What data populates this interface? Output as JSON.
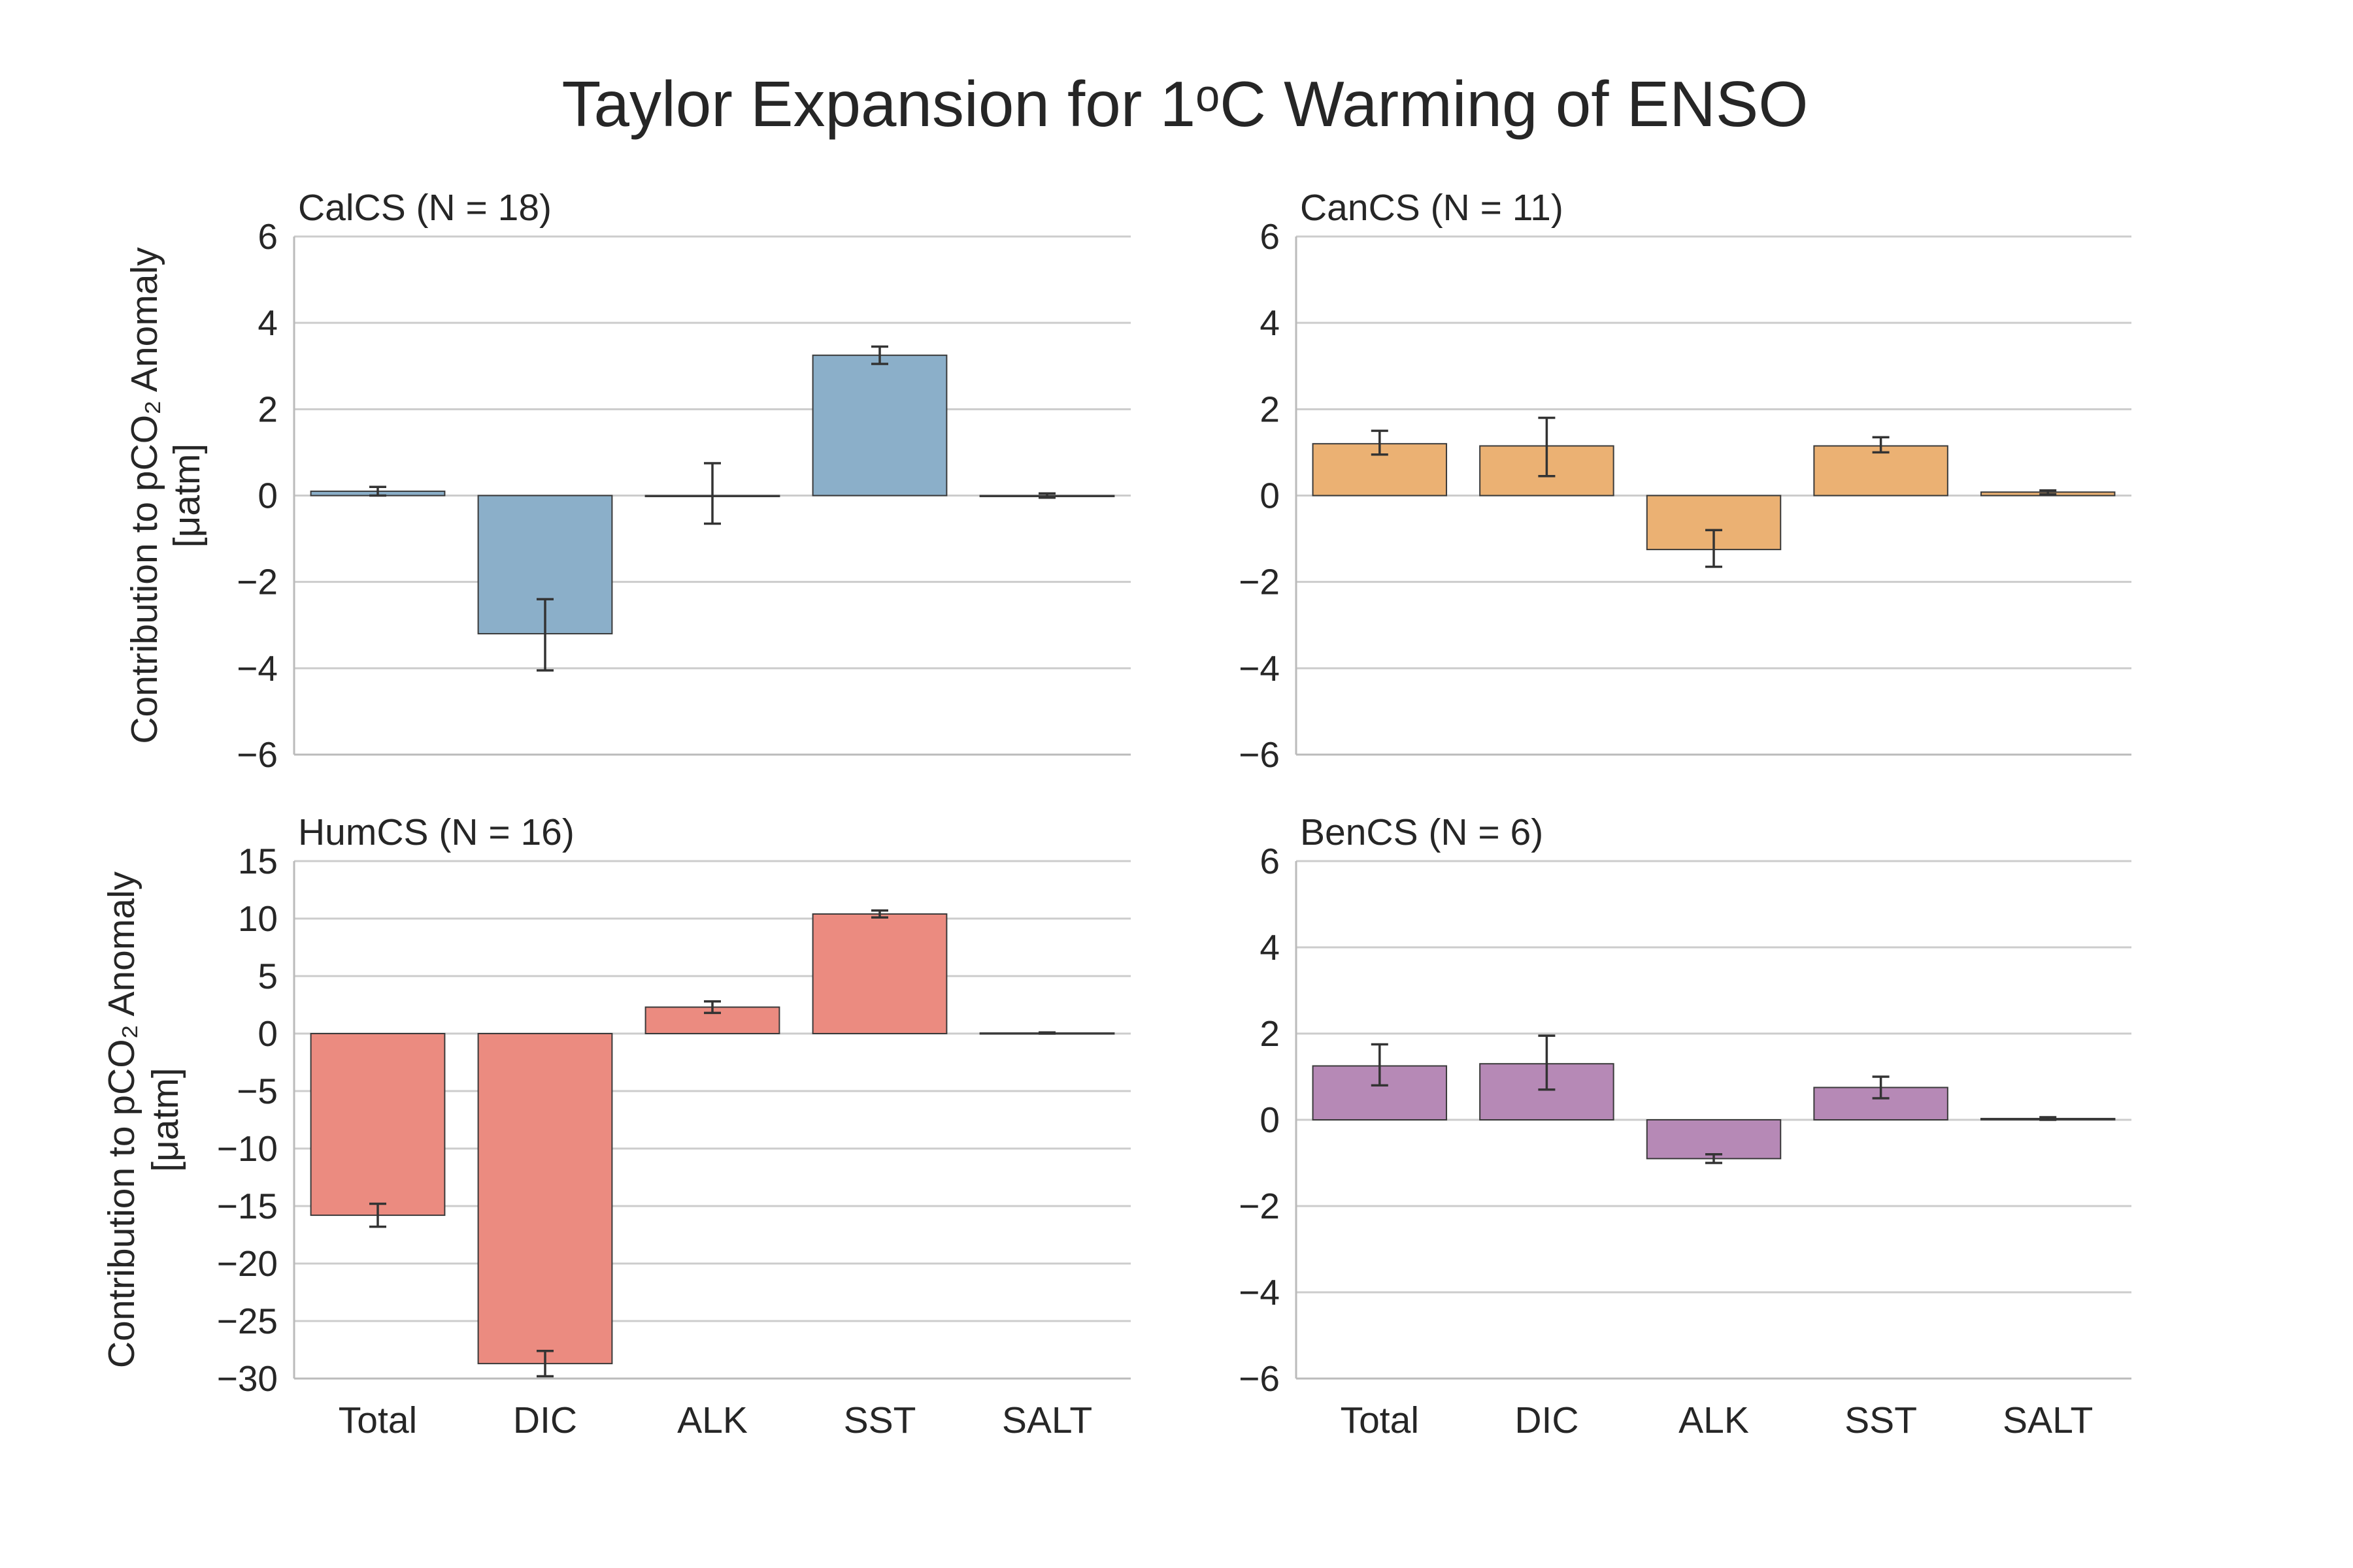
{
  "figure": {
    "title": "Taylor Expansion for 1ᵒC Warming of ENSO",
    "ylabel_line1": "Contribution to pCO₂ Anomaly",
    "ylabel_line2": "[μatm]"
  },
  "chart_data": [
    {
      "type": "bar",
      "title": "CalCS (N = 18)",
      "categories": [
        "Total",
        "DIC",
        "ALK",
        "SST",
        "SALT"
      ],
      "values": [
        0.1,
        -3.2,
        0.0,
        3.25,
        0.0
      ],
      "error_low": [
        0.0,
        -4.05,
        -0.65,
        3.05,
        -0.05
      ],
      "error_high": [
        0.2,
        -2.4,
        0.75,
        3.45,
        0.05
      ],
      "ylim": [
        -6,
        6
      ],
      "yticks": [
        6,
        4,
        2,
        0,
        -2,
        -4,
        -6
      ],
      "ytick_labels": [
        "6",
        "4",
        "2",
        "0",
        "−2",
        "−4",
        "−6"
      ],
      "color": "#8bafc9",
      "show_ylabel": true,
      "show_xticklabels": false
    },
    {
      "type": "bar",
      "title": "CanCS (N = 11)",
      "categories": [
        "Total",
        "DIC",
        "ALK",
        "SST",
        "SALT"
      ],
      "values": [
        1.2,
        1.15,
        -1.25,
        1.15,
        0.08
      ],
      "error_low": [
        0.95,
        0.45,
        -1.65,
        1.0,
        0.03
      ],
      "error_high": [
        1.5,
        1.8,
        -0.8,
        1.35,
        0.12
      ],
      "ylim": [
        -6,
        6
      ],
      "yticks": [
        6,
        4,
        2,
        0,
        -2,
        -4,
        -6
      ],
      "ytick_labels": [
        "6",
        "4",
        "2",
        "0",
        "−2",
        "−4",
        "−6"
      ],
      "color": "#ebb173",
      "show_ylabel": false,
      "show_xticklabels": false
    },
    {
      "type": "bar",
      "title": "HumCS (N = 16)",
      "categories": [
        "Total",
        "DIC",
        "ALK",
        "SST",
        "SALT"
      ],
      "values": [
        -15.8,
        -28.7,
        2.3,
        10.4,
        0.05
      ],
      "error_low": [
        -16.8,
        -29.8,
        1.8,
        10.1,
        0.0
      ],
      "error_high": [
        -14.8,
        -27.6,
        2.8,
        10.7,
        0.1
      ],
      "ylim": [
        -30,
        15
      ],
      "yticks": [
        15,
        10,
        5,
        0,
        -5,
        -10,
        -15,
        -20,
        -25,
        -30
      ],
      "ytick_labels": [
        "15",
        "10",
        "5",
        "0",
        "−5",
        "−10",
        "−15",
        "−20",
        "−25",
        "−30"
      ],
      "color": "#eb8b80",
      "show_ylabel": true,
      "show_xticklabels": true
    },
    {
      "type": "bar",
      "title": "BenCS (N = 6)",
      "categories": [
        "Total",
        "DIC",
        "ALK",
        "SST",
        "SALT"
      ],
      "values": [
        1.25,
        1.3,
        -0.9,
        0.75,
        0.03
      ],
      "error_low": [
        0.8,
        0.7,
        -1.0,
        0.5,
        0.0
      ],
      "error_high": [
        1.75,
        1.95,
        -0.8,
        1.0,
        0.06
      ],
      "ylim": [
        -6,
        6
      ],
      "yticks": [
        6,
        4,
        2,
        0,
        -2,
        -4,
        -6
      ],
      "ytick_labels": [
        "6",
        "4",
        "2",
        "0",
        "−2",
        "−4",
        "−6"
      ],
      "color": "#b689b6",
      "show_ylabel": false,
      "show_xticklabels": true
    }
  ]
}
